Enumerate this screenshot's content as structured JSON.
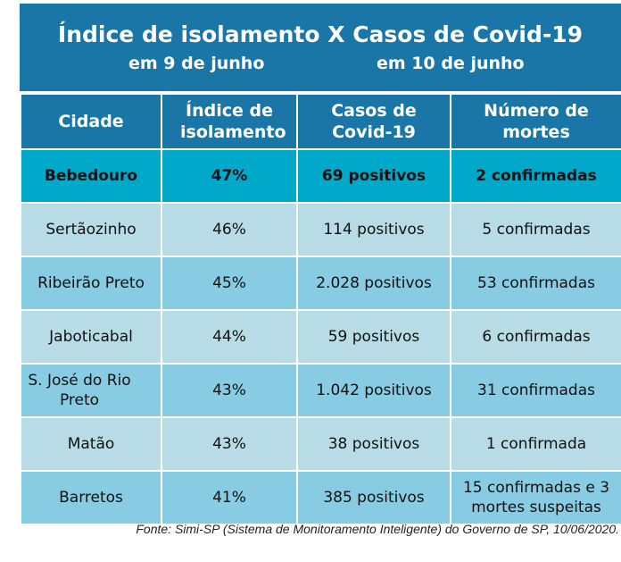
{
  "header": {
    "title": "Índice de isolamento X Casos de Covid-19",
    "subtitle_left": "em 9 de junho",
    "subtitle_right": "em 10 de junho"
  },
  "table": {
    "columns": [
      "Cidade",
      "Índice de isolamento",
      "Casos de Covid-19",
      "Número de mortes"
    ],
    "rows": [
      {
        "cidade": "Bebedouro",
        "indice": "47%",
        "casos": "69 positivos",
        "mortes": "2 confirmadas"
      },
      {
        "cidade": "Sertãozinho",
        "indice": "46%",
        "casos": "114 positivos",
        "mortes": "5 confirmadas"
      },
      {
        "cidade": "Ribeirão Preto",
        "indice": "45%",
        "casos": "2.028 positivos",
        "mortes": "53 confirmadas"
      },
      {
        "cidade": "Jaboticabal",
        "indice": "44%",
        "casos": "59 positivos",
        "mortes": "6 confirmadas"
      },
      {
        "cidade": "S. José do Rio Preto",
        "indice": "43%",
        "casos": "1.042 positivos",
        "mortes": "31 confirmadas"
      },
      {
        "cidade": "Matão",
        "indice": "43%",
        "casos": "38 positivos",
        "mortes": "1 confirmada"
      },
      {
        "cidade": "Barretos",
        "indice": "41%",
        "casos": "385 positivos",
        "mortes": "15 confirmadas e 3 mortes suspeitas"
      }
    ]
  },
  "source": "Fonte: Simi-SP (Sistema de Monitoramento Inteligente) do Governo de SP, 10/06/2020.",
  "colors": {
    "header_blue": "#1a76a6",
    "highlight_cyan": "#00a8c9",
    "row_light": "#b7dce6",
    "row_mid": "#87cce2"
  }
}
